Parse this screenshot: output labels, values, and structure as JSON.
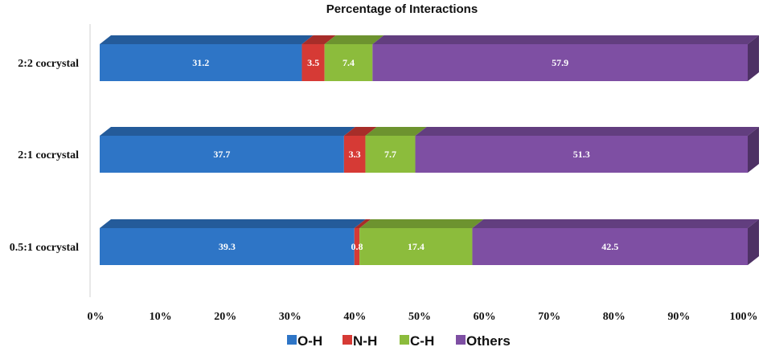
{
  "chart_data": {
    "type": "bar",
    "orientation": "horizontal",
    "stacked": true,
    "style": "3d",
    "title": "Percentage of Interactions",
    "categories": [
      "2:2 cocrystal",
      "2:1 cocrystal",
      "0.5:1 cocrystal"
    ],
    "series": [
      {
        "name": "O-H",
        "color": "#2e75c6",
        "values": [
          31.2,
          37.7,
          39.3
        ]
      },
      {
        "name": "N-H",
        "color": "#d63a35",
        "values": [
          3.5,
          3.3,
          0.8
        ]
      },
      {
        "name": "C-H",
        "color": "#8cbc3c",
        "values": [
          7.4,
          7.7,
          17.4
        ]
      },
      {
        "name": "Others",
        "color": "#7e4fa3",
        "values": [
          57.9,
          51.3,
          42.5
        ]
      }
    ],
    "data_labels": [
      [
        "31.2",
        "3.5",
        "7.4",
        "57.9"
      ],
      [
        "37.7",
        "3.3",
        "7.7",
        "51.3"
      ],
      [
        "39.3",
        "0.8",
        "17.4",
        "42.5"
      ]
    ],
    "xlim": [
      0,
      100
    ],
    "xticks": [
      "0%",
      "10%",
      "20%",
      "30%",
      "40%",
      "50%",
      "60%",
      "70%",
      "80%",
      "90%",
      "100%"
    ],
    "grid": false,
    "legend_position": "bottom"
  }
}
